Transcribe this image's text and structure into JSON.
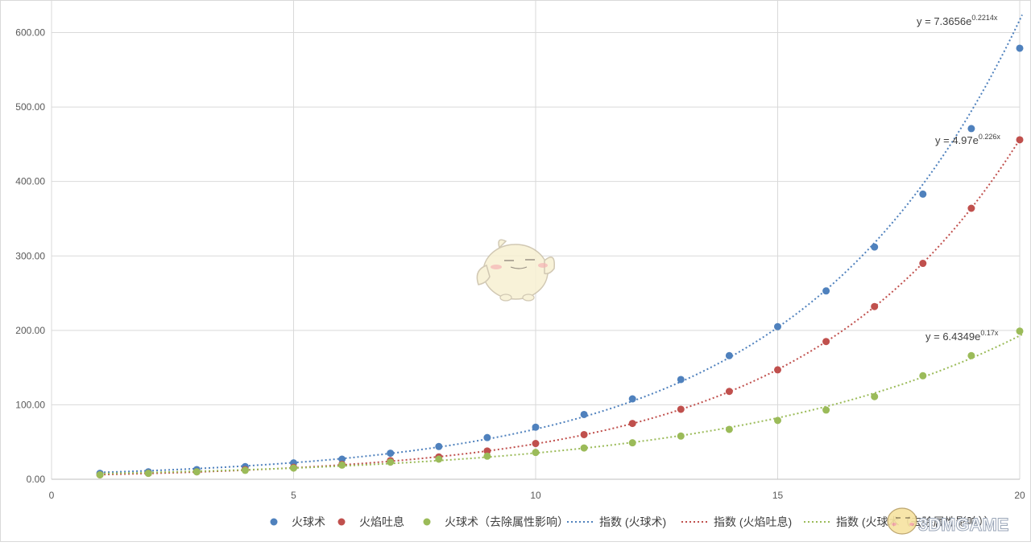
{
  "chart_data": {
    "type": "scatter",
    "x": [
      1,
      2,
      3,
      4,
      5,
      6,
      7,
      8,
      9,
      10,
      11,
      12,
      13,
      14,
      15,
      16,
      17,
      18,
      19,
      20
    ],
    "xlim": [
      0,
      20
    ],
    "ylim": [
      0,
      640
    ],
    "x_ticks": [
      "0",
      "5",
      "10",
      "15",
      "20"
    ],
    "y_ticks": [
      "0.00",
      "100.00",
      "200.00",
      "300.00",
      "400.00",
      "500.00",
      "600.00"
    ],
    "grid": true,
    "legend_position": "bottom",
    "series": [
      {
        "name": "火球术",
        "color": "#4f81bd",
        "values": [
          8,
          10,
          13,
          17,
          22,
          27,
          35,
          44,
          56,
          70,
          87,
          108,
          134,
          166,
          205,
          253,
          312,
          383,
          471,
          579
        ]
      },
      {
        "name": "火焰吐息",
        "color": "#c0504d",
        "values": [
          6,
          8,
          10,
          13,
          16,
          20,
          25,
          30,
          38,
          48,
          60,
          75,
          94,
          118,
          147,
          185,
          232,
          290,
          364,
          456
        ]
      },
      {
        "name": "火球术（去除属性影响）",
        "color": "#9bbb59",
        "values": [
          6,
          8,
          10,
          12,
          15,
          19,
          23,
          27,
          31,
          36,
          42,
          49,
          58,
          67,
          79,
          93,
          111,
          139,
          166,
          199
        ]
      }
    ],
    "trendlines": [
      {
        "name": "指数 (火球术)",
        "color": "#4f81bd",
        "a": 7.3656,
        "b": 0.2214,
        "equation_prefix": "y = 7.3656e",
        "equation_exp": "0.2214x"
      },
      {
        "name": "指数 (火焰吐息)",
        "color": "#c0504d",
        "a": 4.97,
        "b": 0.226,
        "equation_prefix": "y = 4.97e",
        "equation_exp": "0.226x"
      },
      {
        "name": "指数 (火球术（去除属性影响）)",
        "color": "#9bbb59",
        "a": 6.4349,
        "b": 0.17,
        "equation_prefix": "y = 6.4349e",
        "equation_exp": "0.17x"
      }
    ],
    "legend": [
      {
        "label": "火球术",
        "kind": "marker",
        "color": "#4f81bd"
      },
      {
        "label": "火焰吐息",
        "kind": "marker",
        "color": "#c0504d"
      },
      {
        "label": "火球术（去除属性影响）",
        "kind": "marker",
        "color": "#9bbb59"
      },
      {
        "label": "指数 (火球术)",
        "kind": "line",
        "color": "#4f81bd"
      },
      {
        "label": "指数 (火焰吐息)",
        "kind": "line",
        "color": "#c0504d"
      },
      {
        "label": "指数 (火球术（去除属性影响））",
        "kind": "line",
        "color": "#9bbb59"
      }
    ]
  },
  "watermark": {
    "text": "3DMGAME",
    "icon": "mascot-icon"
  }
}
